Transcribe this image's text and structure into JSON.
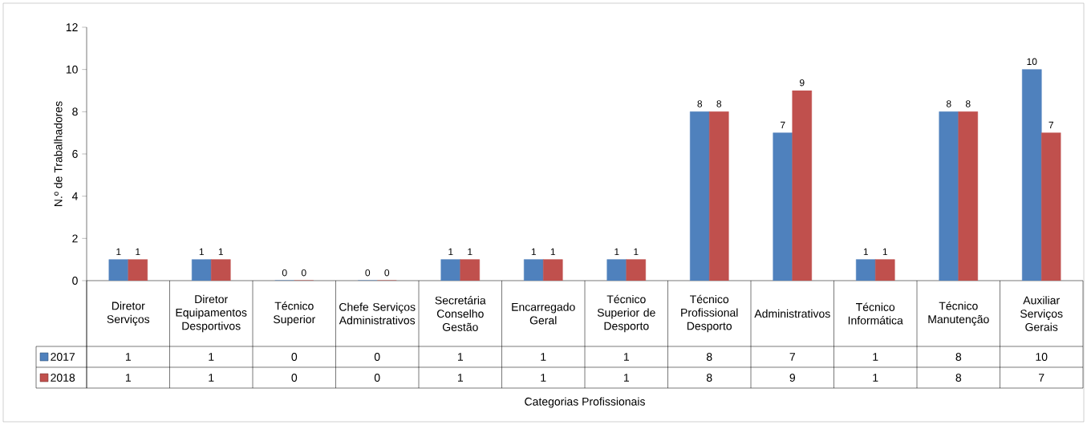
{
  "chart_data": {
    "type": "bar",
    "annotations": [
      "Categorias Profissionais"
    ],
    "ylabel": "N.º de Trabalhadores",
    "categories": [
      "Diretor Serviços",
      "Diretor Equipamentos Desportivos",
      "Técnico Superior",
      "Chefe Serviços Administrativos",
      "Secretária Conselho Gestão",
      "Encarregado Geral",
      "Técnico Superior de Desporto",
      "Técnico Profissional Desporto",
      "Administrativos",
      "Técnico Informática",
      "Técnico Manutenção",
      "Auxiliar Serviços Gerais"
    ],
    "series": [
      {
        "name": "2017",
        "color": "#4f81bd",
        "values": [
          1,
          1,
          0,
          0,
          1,
          1,
          1,
          8,
          7,
          1,
          8,
          10
        ],
        "value_labels": [
          "1",
          "1",
          "0",
          "0",
          "1",
          "1",
          "1",
          "8",
          "7",
          "1",
          "8",
          "10"
        ]
      },
      {
        "name": "2018",
        "color": "#c0504d",
        "values": [
          1,
          1,
          0,
          0,
          1,
          1,
          1,
          8,
          9,
          1,
          8,
          7
        ],
        "value_labels": [
          "1",
          "1",
          "0",
          "0",
          "1",
          "1",
          "1",
          "8",
          "9",
          "1",
          "8",
          "7"
        ]
      }
    ],
    "ylim": [
      0,
      12
    ],
    "yticks": [
      0,
      2,
      4,
      6,
      8,
      10,
      12
    ],
    "data_labels": true,
    "legend": "bottom left",
    "grid": false
  }
}
